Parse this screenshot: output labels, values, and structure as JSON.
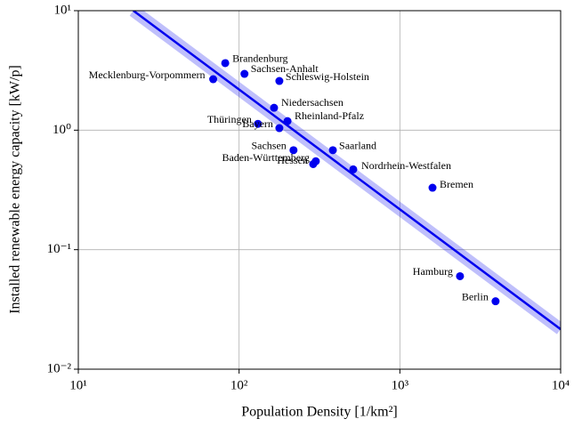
{
  "chart_data": {
    "type": "scatter",
    "xlabel": "Population Density [1/km²]",
    "ylabel": "Installed renewable energy capacity [kW/p]",
    "xlog": true,
    "ylog": true,
    "grid": true,
    "xlim": [
      10,
      10000
    ],
    "ylim": [
      0.01,
      10
    ],
    "xticks": [
      {
        "value": 10,
        "label": "10¹"
      },
      {
        "value": 100,
        "label": "10²"
      },
      {
        "value": 1000,
        "label": "10³"
      },
      {
        "value": 10000,
        "label": "10⁴"
      }
    ],
    "yticks": [
      {
        "value": 0.01,
        "label": "10⁻²"
      },
      {
        "value": 0.1,
        "label": "10⁻¹"
      },
      {
        "value": 1,
        "label": "10⁰"
      },
      {
        "value": 10,
        "label": "10¹"
      }
    ],
    "series": [
      {
        "name": "Bundesländer",
        "color": "#0000ee",
        "labels": [
          "Brandenburg",
          "Sachsen-Anhalt",
          "Mecklenburg-Vorpommern",
          "Schleswig-Holstein",
          "Niedersachsen",
          "Rheinland-Pfalz",
          "Thüringen",
          "Bayern",
          "Sachsen",
          "Saarland",
          "Baden-Württemberg",
          "Hessen",
          "Nordrhein-Westfalen",
          "Bremen",
          "Hamburg",
          "Berlin"
        ],
        "x": [
          82,
          108,
          69,
          178,
          165,
          200,
          131,
          178,
          218,
          383,
          300,
          289,
          513,
          1596,
          2366,
          3937
        ],
        "values": [
          3.64,
          2.96,
          2.67,
          2.58,
          1.54,
          1.19,
          1.13,
          1.04,
          0.68,
          0.68,
          0.55,
          0.52,
          0.47,
          0.33,
          0.06,
          0.037
        ]
      },
      {
        "name": "Fit",
        "color": "#0000ee",
        "x": [
          22,
          10000
        ],
        "values": [
          10,
          0.0216
        ]
      }
    ]
  }
}
